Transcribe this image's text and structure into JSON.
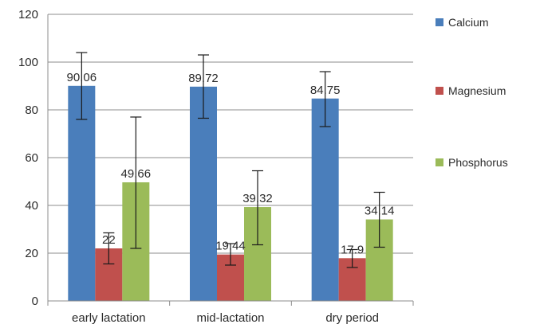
{
  "chart_data": {
    "type": "bar",
    "categories": [
      "early lactation",
      "mid-lactation",
      "dry period"
    ],
    "ylim": [
      0,
      120
    ],
    "yticks": [
      0,
      20,
      40,
      60,
      80,
      100,
      120
    ],
    "grid": true,
    "legend_position": "right",
    "series": [
      {
        "name": "Calcium",
        "color": "#4a7ebb",
        "values": [
          90.06,
          89.72,
          84.75
        ],
        "labels": [
          "90.06",
          "89.72",
          "84.75"
        ],
        "error_low": [
          76,
          76.5,
          73
        ],
        "error_high": [
          104,
          103,
          96
        ]
      },
      {
        "name": "Magnesium",
        "color": "#c0504d",
        "values": [
          22,
          19.44,
          17.9
        ],
        "labels": [
          "22",
          "19.44",
          "17.9"
        ],
        "error_low": [
          15.5,
          15,
          14
        ],
        "error_high": [
          28.5,
          24,
          21.5
        ]
      },
      {
        "name": "Phosphorus",
        "color": "#9bbb59",
        "values": [
          49.66,
          39.32,
          34.14
        ],
        "labels": [
          "49.66",
          "39.32",
          "34.14"
        ],
        "error_low": [
          22,
          23.5,
          22.5
        ],
        "error_high": [
          77,
          54.5,
          45.5
        ]
      }
    ]
  }
}
